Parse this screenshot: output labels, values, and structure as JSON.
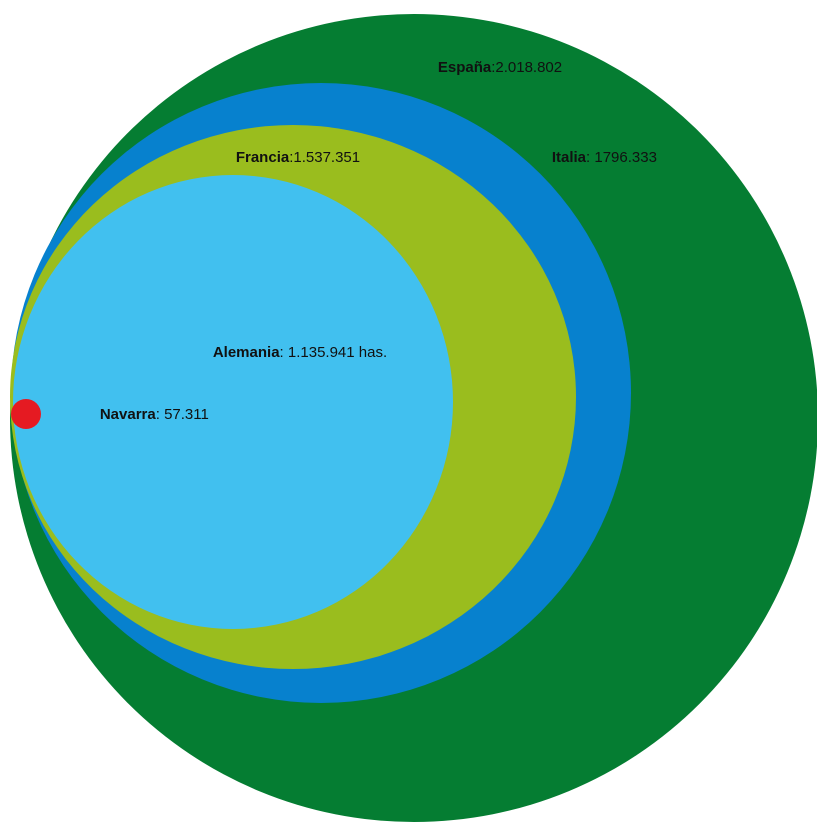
{
  "title": "",
  "colors": {
    "background": "#ffffff",
    "label": "#111111"
  },
  "items": [
    {
      "key": "espana",
      "name": "España",
      "value": 2018802,
      "value_text": "2.018.802",
      "separator": ":",
      "unit": "",
      "color": "#057D32"
    },
    {
      "key": "italia",
      "name": "Italia",
      "value": 1796333,
      "value_text": "1796.333",
      "separator": ": ",
      "unit": "",
      "color": "#0781CE"
    },
    {
      "key": "francia",
      "name": "Francia",
      "value": 1537351,
      "value_text": "1.537.351",
      "separator": ":",
      "unit": "",
      "color": "#9ABD1E"
    },
    {
      "key": "alemania",
      "name": "Alemania",
      "value": 1135941,
      "value_text": "1.135.941",
      "separator": ": ",
      "unit": " has.",
      "color": "#41C0EF"
    },
    {
      "key": "navarra",
      "name": "Navarra",
      "value": 57311,
      "value_text": "57.311",
      "separator": ": ",
      "unit": "",
      "color": "#E51A22"
    }
  ]
}
